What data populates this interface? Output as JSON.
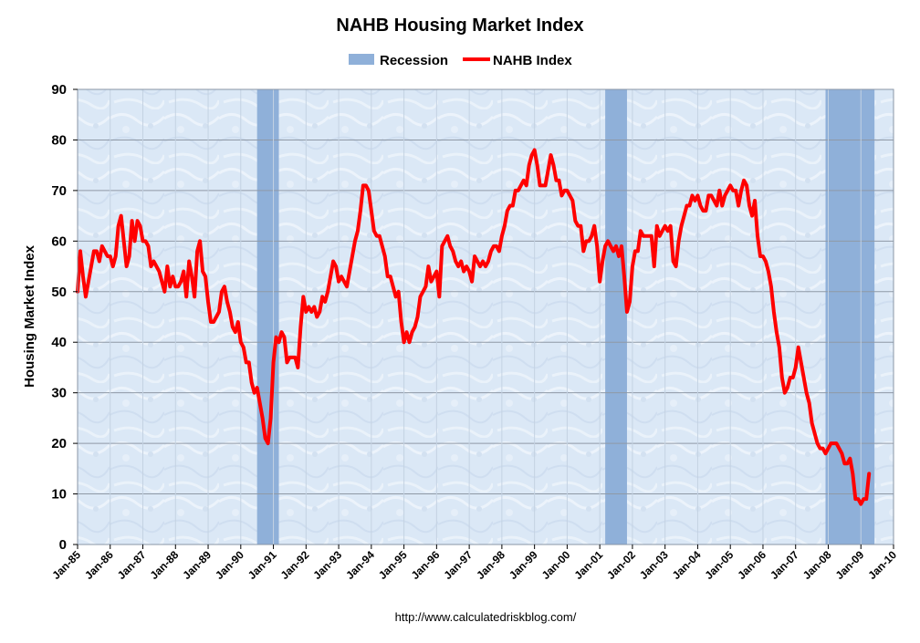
{
  "chart_data": {
    "type": "line",
    "title": "NAHB Housing Market Index",
    "ylabel": "Housing Market Index",
    "xlabel": "",
    "source": "http://www.calculatedriskblog.com/",
    "xlim": [
      "1985-01",
      "2010-01"
    ],
    "ylim": [
      0,
      90
    ],
    "y_ticks": [
      0,
      10,
      20,
      30,
      40,
      50,
      60,
      70,
      80,
      90
    ],
    "x_ticks": [
      "Jan-85",
      "Jan-86",
      "Jan-87",
      "Jan-88",
      "Jan-89",
      "Jan-90",
      "Jan-91",
      "Jan-92",
      "Jan-93",
      "Jan-94",
      "Jan-95",
      "Jan-96",
      "Jan-97",
      "Jan-98",
      "Jan-99",
      "Jan-00",
      "Jan-01",
      "Jan-02",
      "Jan-03",
      "Jan-04",
      "Jan-05",
      "Jan-06",
      "Jan-07",
      "Jan-08",
      "Jan-09",
      "Jan-10"
    ],
    "grid": true,
    "legend": {
      "placement": "top-center",
      "entries": [
        {
          "name": "Recession",
          "type": "band"
        },
        {
          "name": "NAHB Index",
          "type": "line"
        }
      ]
    },
    "colors": {
      "line": "#ff0000",
      "recession": "#8fb0d9",
      "plot_bg": "#dbe8f6",
      "grid": "#9aa7b5"
    },
    "recessions": [
      {
        "start": "1990-07",
        "end": "1991-03"
      },
      {
        "start": "2001-03",
        "end": "2001-11"
      },
      {
        "start": "2007-12",
        "end": "2009-06"
      }
    ],
    "series": [
      {
        "name": "NAHB Index",
        "points": [
          [
            "1985-01",
            50
          ],
          [
            "1985-02",
            58
          ],
          [
            "1985-03",
            53
          ],
          [
            "1985-04",
            49
          ],
          [
            "1985-05",
            52
          ],
          [
            "1985-06",
            55
          ],
          [
            "1985-07",
            58
          ],
          [
            "1985-08",
            58
          ],
          [
            "1985-09",
            56
          ],
          [
            "1985-10",
            59
          ],
          [
            "1985-11",
            58
          ],
          [
            "1985-12",
            57
          ],
          [
            "1986-01",
            57
          ],
          [
            "1986-02",
            55
          ],
          [
            "1986-03",
            57
          ],
          [
            "1986-04",
            63
          ],
          [
            "1986-05",
            65
          ],
          [
            "1986-06",
            60
          ],
          [
            "1986-07",
            55
          ],
          [
            "1986-08",
            57
          ],
          [
            "1986-09",
            64
          ],
          [
            "1986-10",
            60
          ],
          [
            "1986-11",
            64
          ],
          [
            "1986-12",
            63
          ],
          [
            "1987-01",
            60
          ],
          [
            "1987-02",
            60
          ],
          [
            "1987-03",
            59
          ],
          [
            "1987-04",
            55
          ],
          [
            "1987-05",
            56
          ],
          [
            "1987-06",
            55
          ],
          [
            "1987-07",
            54
          ],
          [
            "1987-08",
            52
          ],
          [
            "1987-09",
            50
          ],
          [
            "1987-10",
            55
          ],
          [
            "1987-11",
            51
          ],
          [
            "1987-12",
            53
          ],
          [
            "1988-01",
            51
          ],
          [
            "1988-02",
            51
          ],
          [
            "1988-03",
            52
          ],
          [
            "1988-04",
            54
          ],
          [
            "1988-05",
            49
          ],
          [
            "1988-06",
            56
          ],
          [
            "1988-07",
            53
          ],
          [
            "1988-08",
            49
          ],
          [
            "1988-09",
            58
          ],
          [
            "1988-10",
            60
          ],
          [
            "1988-11",
            54
          ],
          [
            "1988-12",
            53
          ],
          [
            "1989-01",
            48
          ],
          [
            "1989-02",
            44
          ],
          [
            "1989-03",
            44
          ],
          [
            "1989-04",
            45
          ],
          [
            "1989-05",
            46
          ],
          [
            "1989-06",
            50
          ],
          [
            "1989-07",
            51
          ],
          [
            "1989-08",
            48
          ],
          [
            "1989-09",
            46
          ],
          [
            "1989-10",
            43
          ],
          [
            "1989-11",
            42
          ],
          [
            "1989-12",
            44
          ],
          [
            "1990-01",
            40
          ],
          [
            "1990-02",
            39
          ],
          [
            "1990-03",
            36
          ],
          [
            "1990-04",
            36
          ],
          [
            "1990-05",
            32
          ],
          [
            "1990-06",
            30
          ],
          [
            "1990-07",
            31
          ],
          [
            "1990-08",
            28
          ],
          [
            "1990-09",
            25
          ],
          [
            "1990-10",
            21
          ],
          [
            "1990-11",
            20
          ],
          [
            "1990-12",
            25
          ],
          [
            "1991-01",
            36
          ],
          [
            "1991-02",
            41
          ],
          [
            "1991-03",
            40
          ],
          [
            "1991-04",
            42
          ],
          [
            "1991-05",
            41
          ],
          [
            "1991-06",
            36
          ],
          [
            "1991-07",
            37
          ],
          [
            "1991-08",
            37
          ],
          [
            "1991-09",
            37
          ],
          [
            "1991-10",
            35
          ],
          [
            "1991-11",
            43
          ],
          [
            "1991-12",
            49
          ],
          [
            "1992-01",
            46
          ],
          [
            "1992-02",
            47
          ],
          [
            "1992-03",
            46
          ],
          [
            "1992-04",
            47
          ],
          [
            "1992-05",
            45
          ],
          [
            "1992-06",
            46
          ],
          [
            "1992-07",
            49
          ],
          [
            "1992-08",
            48
          ],
          [
            "1992-09",
            50
          ],
          [
            "1992-10",
            53
          ],
          [
            "1992-11",
            56
          ],
          [
            "1992-12",
            55
          ],
          [
            "1993-01",
            52
          ],
          [
            "1993-02",
            53
          ],
          [
            "1993-03",
            52
          ],
          [
            "1993-04",
            51
          ],
          [
            "1993-05",
            54
          ],
          [
            "1993-06",
            57
          ],
          [
            "1993-07",
            60
          ],
          [
            "1993-08",
            62
          ],
          [
            "1993-09",
            66
          ],
          [
            "1993-10",
            71
          ],
          [
            "1993-11",
            71
          ],
          [
            "1993-12",
            70
          ],
          [
            "1994-01",
            66
          ],
          [
            "1994-02",
            62
          ],
          [
            "1994-03",
            61
          ],
          [
            "1994-04",
            61
          ],
          [
            "1994-05",
            59
          ],
          [
            "1994-06",
            57
          ],
          [
            "1994-07",
            53
          ],
          [
            "1994-08",
            53
          ],
          [
            "1994-09",
            51
          ],
          [
            "1994-10",
            49
          ],
          [
            "1994-11",
            50
          ],
          [
            "1994-12",
            44
          ],
          [
            "1995-01",
            40
          ],
          [
            "1995-02",
            42
          ],
          [
            "1995-03",
            40
          ],
          [
            "1995-04",
            42
          ],
          [
            "1995-05",
            43
          ],
          [
            "1995-06",
            45
          ],
          [
            "1995-07",
            49
          ],
          [
            "1995-08",
            50
          ],
          [
            "1995-09",
            51
          ],
          [
            "1995-10",
            55
          ],
          [
            "1995-11",
            52
          ],
          [
            "1995-12",
            53
          ],
          [
            "1996-01",
            54
          ],
          [
            "1996-02",
            49
          ],
          [
            "1996-03",
            59
          ],
          [
            "1996-04",
            60
          ],
          [
            "1996-05",
            61
          ],
          [
            "1996-06",
            59
          ],
          [
            "1996-07",
            58
          ],
          [
            "1996-08",
            56
          ],
          [
            "1996-09",
            55
          ],
          [
            "1996-10",
            56
          ],
          [
            "1996-11",
            54
          ],
          [
            "1996-12",
            55
          ],
          [
            "1997-01",
            54
          ],
          [
            "1997-02",
            52
          ],
          [
            "1997-03",
            57
          ],
          [
            "1997-04",
            56
          ],
          [
            "1997-05",
            55
          ],
          [
            "1997-06",
            56
          ],
          [
            "1997-07",
            55
          ],
          [
            "1997-08",
            56
          ],
          [
            "1997-09",
            58
          ],
          [
            "1997-10",
            59
          ],
          [
            "1997-11",
            59
          ],
          [
            "1997-12",
            58
          ],
          [
            "1998-01",
            61
          ],
          [
            "1998-02",
            63
          ],
          [
            "1998-03",
            66
          ],
          [
            "1998-04",
            67
          ],
          [
            "1998-05",
            67
          ],
          [
            "1998-06",
            70
          ],
          [
            "1998-07",
            70
          ],
          [
            "1998-08",
            71
          ],
          [
            "1998-09",
            72
          ],
          [
            "1998-10",
            71
          ],
          [
            "1998-11",
            75
          ],
          [
            "1998-12",
            77
          ],
          [
            "1999-01",
            78
          ],
          [
            "1999-02",
            75
          ],
          [
            "1999-03",
            71
          ],
          [
            "1999-04",
            71
          ],
          [
            "1999-05",
            71
          ],
          [
            "1999-06",
            74
          ],
          [
            "1999-07",
            77
          ],
          [
            "1999-08",
            75
          ],
          [
            "1999-09",
            72
          ],
          [
            "1999-10",
            72
          ],
          [
            "1999-11",
            69
          ],
          [
            "1999-12",
            70
          ],
          [
            "2000-01",
            70
          ],
          [
            "2000-02",
            69
          ],
          [
            "2000-03",
            68
          ],
          [
            "2000-04",
            64
          ],
          [
            "2000-05",
            63
          ],
          [
            "2000-06",
            63
          ],
          [
            "2000-07",
            58
          ],
          [
            "2000-08",
            60
          ],
          [
            "2000-09",
            60
          ],
          [
            "2000-10",
            61
          ],
          [
            "2000-11",
            63
          ],
          [
            "2000-12",
            59
          ],
          [
            "2001-01",
            52
          ],
          [
            "2001-02",
            56
          ],
          [
            "2001-03",
            59
          ],
          [
            "2001-04",
            60
          ],
          [
            "2001-05",
            59
          ],
          [
            "2001-06",
            58
          ],
          [
            "2001-07",
            59
          ],
          [
            "2001-08",
            57
          ],
          [
            "2001-09",
            59
          ],
          [
            "2001-10",
            53
          ],
          [
            "2001-11",
            46
          ],
          [
            "2001-12",
            48
          ],
          [
            "2002-01",
            55
          ],
          [
            "2002-02",
            58
          ],
          [
            "2002-03",
            58
          ],
          [
            "2002-04",
            62
          ],
          [
            "2002-05",
            61
          ],
          [
            "2002-06",
            61
          ],
          [
            "2002-07",
            61
          ],
          [
            "2002-08",
            61
          ],
          [
            "2002-09",
            55
          ],
          [
            "2002-10",
            63
          ],
          [
            "2002-11",
            61
          ],
          [
            "2002-12",
            62
          ],
          [
            "2003-01",
            63
          ],
          [
            "2003-02",
            62
          ],
          [
            "2003-03",
            63
          ],
          [
            "2003-04",
            56
          ],
          [
            "2003-05",
            55
          ],
          [
            "2003-06",
            60
          ],
          [
            "2003-07",
            63
          ],
          [
            "2003-08",
            65
          ],
          [
            "2003-09",
            67
          ],
          [
            "2003-10",
            67
          ],
          [
            "2003-11",
            69
          ],
          [
            "2003-12",
            68
          ],
          [
            "2004-01",
            69
          ],
          [
            "2004-02",
            67
          ],
          [
            "2004-03",
            66
          ],
          [
            "2004-04",
            66
          ],
          [
            "2004-05",
            69
          ],
          [
            "2004-06",
            69
          ],
          [
            "2004-07",
            68
          ],
          [
            "2004-08",
            67
          ],
          [
            "2004-09",
            70
          ],
          [
            "2004-10",
            67
          ],
          [
            "2004-11",
            69
          ],
          [
            "2004-12",
            70
          ],
          [
            "2005-01",
            71
          ],
          [
            "2005-02",
            70
          ],
          [
            "2005-03",
            70
          ],
          [
            "2005-04",
            67
          ],
          [
            "2005-05",
            70
          ],
          [
            "2005-06",
            72
          ],
          [
            "2005-07",
            71
          ],
          [
            "2005-08",
            67
          ],
          [
            "2005-09",
            65
          ],
          [
            "2005-10",
            68
          ],
          [
            "2005-11",
            61
          ],
          [
            "2005-12",
            57
          ],
          [
            "2006-01",
            57
          ],
          [
            "2006-02",
            56
          ],
          [
            "2006-03",
            54
          ],
          [
            "2006-04",
            51
          ],
          [
            "2006-05",
            46
          ],
          [
            "2006-06",
            42
          ],
          [
            "2006-07",
            39
          ],
          [
            "2006-08",
            33
          ],
          [
            "2006-09",
            30
          ],
          [
            "2006-10",
            31
          ],
          [
            "2006-11",
            33
          ],
          [
            "2006-12",
            33
          ],
          [
            "2007-01",
            35
          ],
          [
            "2007-02",
            39
          ],
          [
            "2007-03",
            36
          ],
          [
            "2007-04",
            33
          ],
          [
            "2007-05",
            30
          ],
          [
            "2007-06",
            28
          ],
          [
            "2007-07",
            24
          ],
          [
            "2007-08",
            22
          ],
          [
            "2007-09",
            20
          ],
          [
            "2007-10",
            19
          ],
          [
            "2007-11",
            19
          ],
          [
            "2007-12",
            18
          ],
          [
            "2008-01",
            19
          ],
          [
            "2008-02",
            20
          ],
          [
            "2008-03",
            20
          ],
          [
            "2008-04",
            20
          ],
          [
            "2008-05",
            19
          ],
          [
            "2008-06",
            18
          ],
          [
            "2008-07",
            16
          ],
          [
            "2008-08",
            16
          ],
          [
            "2008-09",
            17
          ],
          [
            "2008-10",
            14
          ],
          [
            "2008-11",
            9
          ],
          [
            "2008-12",
            9
          ],
          [
            "2009-01",
            8
          ],
          [
            "2009-02",
            9
          ],
          [
            "2009-03",
            9
          ],
          [
            "2009-04",
            14
          ]
        ]
      }
    ]
  }
}
